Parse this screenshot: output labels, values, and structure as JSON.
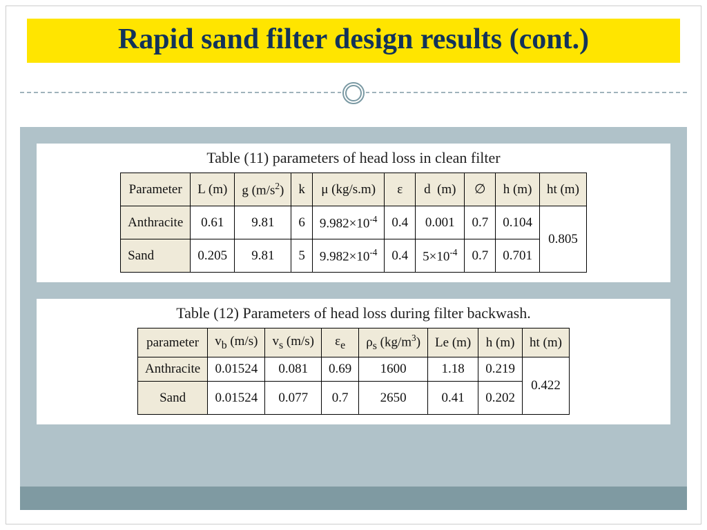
{
  "title": "Rapid sand filter design results (cont.)",
  "colors": {
    "title_bg": "#ffe500",
    "title_text": "#12335a",
    "body_bg": "#b0c2c9",
    "footer_bg": "#7f9aa2",
    "header_cell_bg": "#efead9",
    "border": "#000000",
    "divider": "#9fb3bb"
  },
  "table11": {
    "caption": "Table (11)  parameters of head loss in clean filter",
    "columns": [
      "Parameter",
      "L (m)",
      "g (m/s²)",
      "k",
      "μ (kg/s.m)",
      "ε",
      "d (m)",
      "∅",
      "h (m)",
      "ht (m)"
    ],
    "rows": [
      {
        "label": "Anthracite",
        "L": "0.61",
        "g": "9.81",
        "k": "6",
        "mu": "9.982×10⁻⁴",
        "eps": "0.4",
        "d": "0.001",
        "phi": "0.7",
        "h": "0.104"
      },
      {
        "label": "Sand",
        "L": "0.205",
        "g": "9.81",
        "k": "5",
        "mu": "9.982×10⁻⁴",
        "eps": "0.4",
        "d": "5×10⁻⁴",
        "phi": "0.7",
        "h": "0.701"
      }
    ],
    "ht": "0.805"
  },
  "table12": {
    "caption": "Table (12)  Parameters of head loss during filter backwash.",
    "columns": [
      "parameter",
      "vᵦ (m/s)",
      "vₛ (m/s)",
      "εₑ",
      "ρₛ (kg/m³)",
      "Le (m)",
      "h (m)",
      "ht (m)"
    ],
    "rows": [
      {
        "label": "Anthracite",
        "vb": "0.01524",
        "vs": "0.081",
        "ee": "0.69",
        "rho": "1600",
        "Le": "1.18",
        "h": "0.219"
      },
      {
        "label": "Sand",
        "vb": "0.01524",
        "vs": "0.077",
        "ee": "0.7",
        "rho": "2650",
        "Le": "0.41",
        "h": "0.202"
      }
    ],
    "ht": "0.422"
  }
}
